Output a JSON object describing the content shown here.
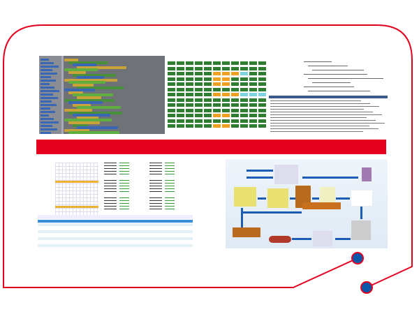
{
  "colors": {
    "frame_red": "#e50020",
    "dot_blue": "#0a56a8",
    "block_green": "#2e7d32",
    "block_orange": "#f0a020",
    "block_cyan": "#7fd3e0",
    "flow_arrow": "#1b5db5"
  },
  "panels": [
    {
      "id": "visual-programming-editor"
    },
    {
      "id": "status-grid"
    },
    {
      "id": "code-editor"
    },
    {
      "id": "data-table"
    },
    {
      "id": "logistics-flowchart"
    }
  ],
  "legend_colors": [
    "#2e7d32",
    "#f0a020",
    "#7fd3e0",
    "#bfe8f0",
    "#e5502a"
  ]
}
